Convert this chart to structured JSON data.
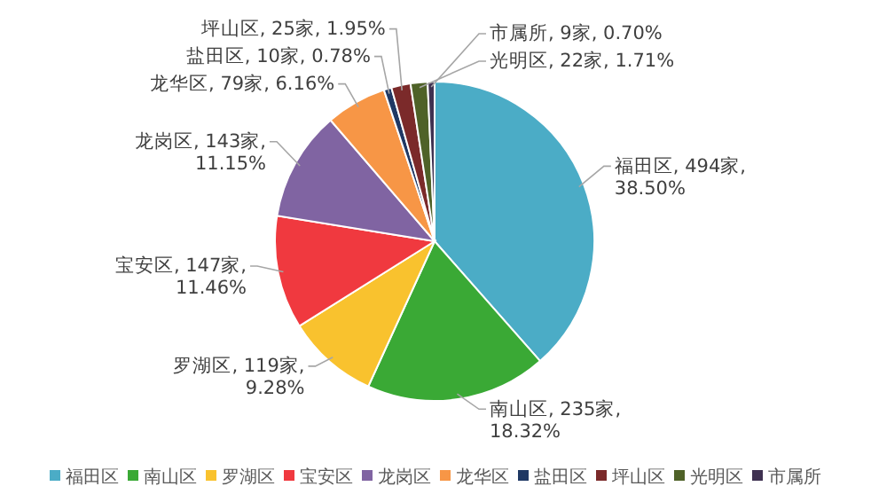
{
  "chart_data": {
    "type": "pie",
    "categories": [
      "福田区",
      "南山区",
      "罗湖区",
      "宝安区",
      "龙岗区",
      "龙华区",
      "盐田区",
      "坪山区",
      "光明区",
      "市属所"
    ],
    "values": [
      494,
      235,
      119,
      147,
      143,
      79,
      10,
      25,
      22,
      9
    ],
    "value_labels": [
      "福田区, 494家, 38.50%",
      "南山区, 235家, 18.32%",
      "罗湖区, 119家, 9.28%",
      "宝安区, 147家, 11.46%",
      "龙岗区, 143家, 11.15%",
      "龙华区, 79家, 6.16%",
      "盐田区, 10家, 0.78%",
      "坪山区, 25家, 1.95%",
      "光明区, 22家, 1.71%",
      "市属所, 9家, 0.70%"
    ],
    "colors": [
      "#4bacc6",
      "#3aa935",
      "#f9c22e",
      "#f0393f",
      "#8064a2",
      "#f79646",
      "#1f3864",
      "#7b2a2a",
      "#4f6228",
      "#3f3151"
    ],
    "legend": "bottom"
  }
}
